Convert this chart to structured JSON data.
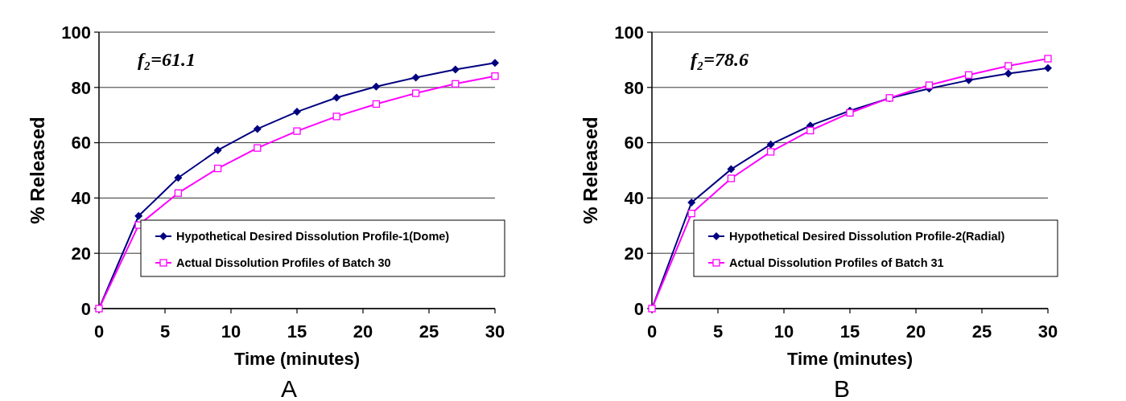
{
  "chart_data": [
    {
      "type": "line",
      "xlabel": "Time (minutes)",
      "ylabel": "% Released",
      "x": [
        0,
        3,
        6,
        9,
        12,
        15,
        18,
        21,
        24,
        27,
        30
      ],
      "xlim": [
        0,
        30
      ],
      "xticks": [
        0,
        5,
        10,
        15,
        20,
        25,
        30
      ],
      "ylim": [
        0,
        100
      ],
      "yticks": [
        0,
        20,
        40,
        60,
        80,
        100
      ],
      "grid": "y",
      "legend": "bottom right",
      "annotations": [
        "f₂=61.1",
        "A"
      ],
      "series": [
        {
          "name": "Hypothetical Desired Dissolution Profile-1(Dome)",
          "color": "#000080",
          "marker": "diamond",
          "values": [
            0,
            33.5,
            47.3,
            57.3,
            65,
            71.2,
            76.3,
            80.3,
            83.6,
            86.5,
            88.9
          ]
        },
        {
          "name": "Actual Dissolution Profiles of Batch 30",
          "color": "#ff00ff",
          "marker": "square",
          "values": [
            0,
            30.2,
            41.8,
            50.7,
            58.1,
            64.2,
            69.5,
            74,
            77.9,
            81.3,
            84.1
          ]
        }
      ]
    },
    {
      "type": "line",
      "xlabel": "Time (minutes)",
      "ylabel": "% Released",
      "x": [
        0,
        3,
        6,
        9,
        12,
        15,
        18,
        21,
        24,
        27,
        30
      ],
      "xlim": [
        0,
        30
      ],
      "xticks": [
        0,
        5,
        10,
        15,
        20,
        25,
        30
      ],
      "ylim": [
        0,
        100
      ],
      "yticks": [
        0,
        20,
        40,
        60,
        80,
        100
      ],
      "grid": "y",
      "legend": "bottom right",
      "annotations": [
        "f₂=78.6",
        "B"
      ],
      "series": [
        {
          "name": "Hypothetical Desired Dissolution Profile-2(Radial)",
          "color": "#000080",
          "marker": "diamond",
          "values": [
            0,
            38.4,
            50.4,
            59.4,
            66.2,
            71.6,
            76.1,
            79.6,
            82.6,
            85,
            87
          ]
        },
        {
          "name": "Actual Dissolution Profiles of Batch 31",
          "color": "#ff00ff",
          "marker": "square",
          "values": [
            0,
            34.4,
            47.1,
            56.7,
            64.4,
            70.8,
            76.2,
            80.8,
            84.5,
            87.8,
            90.4
          ]
        }
      ]
    }
  ]
}
